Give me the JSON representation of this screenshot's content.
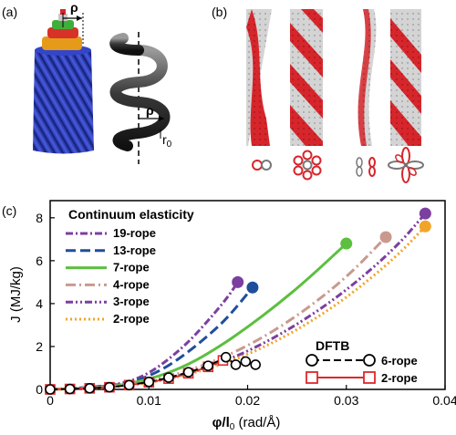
{
  "panels": {
    "a": "(a)",
    "b": "(b)",
    "c": "(c)"
  },
  "panel_a": {
    "rho_label": "ρ",
    "helix_rho_label": "ρ",
    "r0_label": "r",
    "r0_sub": "0"
  },
  "chart_data": {
    "type": "line",
    "title": "",
    "xlabel_main": "φ/l",
    "xlabel_sub": "0",
    "xlabel_unit": " (rad/Å)",
    "ylabel": "J (MJ/kg)",
    "xlim": [
      0,
      0.04
    ],
    "ylim": [
      0,
      8.8
    ],
    "xticks": [
      0,
      0.01,
      0.02,
      0.03,
      0.04
    ],
    "xtick_labels": [
      "0",
      "0.01",
      "0.02",
      "0.03",
      "0.04"
    ],
    "yticks": [
      0,
      2,
      4,
      6,
      8
    ],
    "ytick_labels": [
      "0",
      "2",
      "4",
      "6",
      "8"
    ],
    "grid": false,
    "legend_continuum_title": "Continuum elasticity",
    "legend_dftb_title": "DFTB",
    "continuum_series": [
      {
        "name": "19-rope",
        "color": "#7b3fa0",
        "dash": "8,3,2,3",
        "x": [
          0,
          0.005,
          0.008,
          0.01,
          0.012,
          0.014,
          0.016,
          0.018,
          0.019
        ],
        "y": [
          0,
          0.12,
          0.35,
          0.75,
          1.4,
          2.2,
          3.2,
          4.3,
          5.0
        ],
        "end": [
          0.019,
          5.0
        ]
      },
      {
        "name": "13-rope",
        "color": "#1f4e9c",
        "dash": "11,5",
        "x": [
          0,
          0.005,
          0.008,
          0.01,
          0.012,
          0.014,
          0.016,
          0.018,
          0.0205
        ],
        "y": [
          0,
          0.1,
          0.3,
          0.62,
          1.1,
          1.75,
          2.5,
          3.35,
          4.75
        ],
        "end": [
          0.0205,
          4.75
        ]
      },
      {
        "name": "7-rope",
        "color": "#5cbf3f",
        "dash": "",
        "x": [
          0,
          0.005,
          0.008,
          0.011,
          0.014,
          0.017,
          0.02,
          0.023,
          0.026,
          0.03
        ],
        "y": [
          0,
          0.08,
          0.25,
          0.6,
          1.15,
          1.95,
          2.9,
          3.95,
          5.1,
          6.8
        ],
        "end": [
          0.03,
          6.8
        ]
      },
      {
        "name": "4-rope",
        "color": "#c89a8e",
        "dash": "11,4,2,4",
        "x": [
          0,
          0.005,
          0.01,
          0.015,
          0.02,
          0.025,
          0.03,
          0.034
        ],
        "y": [
          0,
          0.07,
          0.35,
          1.0,
          2.0,
          3.4,
          5.2,
          7.1
        ],
        "end": [
          0.034,
          7.1
        ]
      },
      {
        "name": "3-rope",
        "color": "#7b3fa0",
        "dash": "8,3,2,3,2,3",
        "x": [
          0,
          0.005,
          0.01,
          0.015,
          0.02,
          0.025,
          0.03,
          0.035,
          0.038
        ],
        "y": [
          0,
          0.06,
          0.3,
          0.85,
          1.75,
          3.0,
          4.6,
          6.6,
          8.2
        ],
        "end": [
          0.038,
          8.2
        ]
      },
      {
        "name": "2-rope",
        "color": "#f0a52a",
        "dash": "2,3",
        "x": [
          0,
          0.005,
          0.01,
          0.015,
          0.02,
          0.025,
          0.03,
          0.035,
          0.038
        ],
        "y": [
          0,
          0.05,
          0.28,
          0.8,
          1.6,
          2.75,
          4.25,
          6.15,
          7.6
        ],
        "end": [
          0.038,
          7.6
        ]
      }
    ],
    "dftb_series": [
      {
        "name": "6-rope",
        "color": "#000000",
        "dash": "8,4",
        "marker": "circle",
        "x": [
          0,
          0.002,
          0.004,
          0.006,
          0.008,
          0.01,
          0.012,
          0.014,
          0.016,
          0.0178,
          0.0188,
          0.0198,
          0.0208
        ],
        "y": [
          0,
          0.02,
          0.05,
          0.1,
          0.2,
          0.35,
          0.55,
          0.8,
          1.1,
          1.5,
          1.15,
          1.3,
          1.15
        ]
      },
      {
        "name": "2-rope",
        "color": "#e0262b",
        "dash": "",
        "marker": "square",
        "x": [
          0,
          0.002,
          0.004,
          0.006,
          0.008,
          0.01,
          0.012,
          0.014,
          0.016,
          0.0175
        ],
        "y": [
          0,
          0.02,
          0.05,
          0.1,
          0.2,
          0.33,
          0.5,
          0.75,
          1.05,
          1.35
        ]
      }
    ]
  }
}
